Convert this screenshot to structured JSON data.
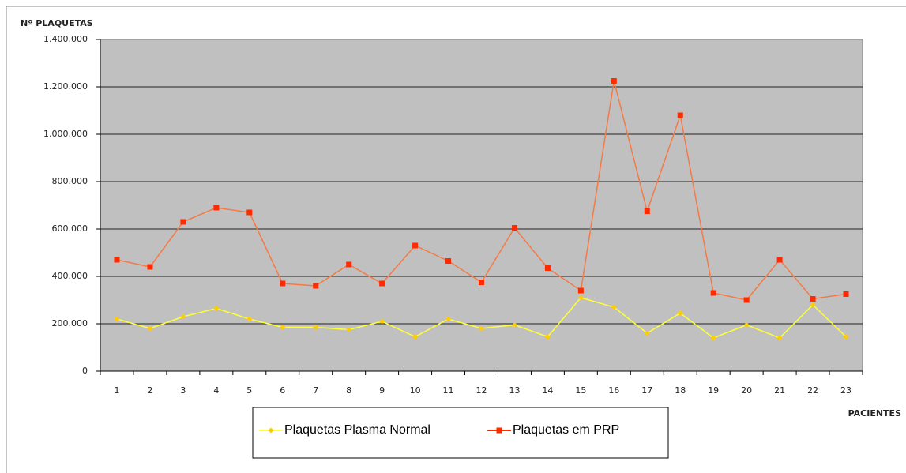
{
  "chart_data": {
    "type": "line",
    "y_label": "Nº PLAQUETAS",
    "x_label": "PACIENTES",
    "categories": [
      "1",
      "2",
      "3",
      "4",
      "5",
      "6",
      "7",
      "8",
      "9",
      "10",
      "11",
      "12",
      "13",
      "14",
      "15",
      "16",
      "17",
      "18",
      "19",
      "20",
      "21",
      "22",
      "23"
    ],
    "series": [
      {
        "name": "Plaquetas Plasma Normal",
        "color": "#ffcc00",
        "line_color": "#ffff33",
        "values": [
          220000,
          180000,
          230000,
          265000,
          220000,
          185000,
          185000,
          175000,
          210000,
          145000,
          220000,
          180000,
          195000,
          145000,
          310000,
          270000,
          160000,
          245000,
          140000,
          195000,
          140000,
          280000,
          145000
        ]
      },
      {
        "name": "Plaquetas em PRP",
        "color": "#ff2a00",
        "line_color": "#f47a45",
        "values": [
          470000,
          440000,
          630000,
          690000,
          670000,
          370000,
          360000,
          450000,
          370000,
          530000,
          465000,
          375000,
          605000,
          435000,
          340000,
          1225000,
          675000,
          1080000,
          330000,
          300000,
          470000,
          305000,
          325000
        ]
      }
    ],
    "ylim": [
      0,
      1400000
    ],
    "yticks": [
      0,
      {
        "value": 200000,
        "label": "200.000"
      },
      {
        "value": 400000,
        "label": "400.000"
      },
      {
        "value": 600000,
        "label": "600.000"
      },
      {
        "value": 800000,
        "label": "800.000"
      },
      {
        "value": 1000000,
        "label": "1.000.000"
      },
      {
        "value": 1200000,
        "label": "1.200.000"
      },
      {
        "value": 1400000,
        "label": "1.400.000"
      }
    ],
    "grid": true,
    "plot_background": "#c0c0c0"
  }
}
